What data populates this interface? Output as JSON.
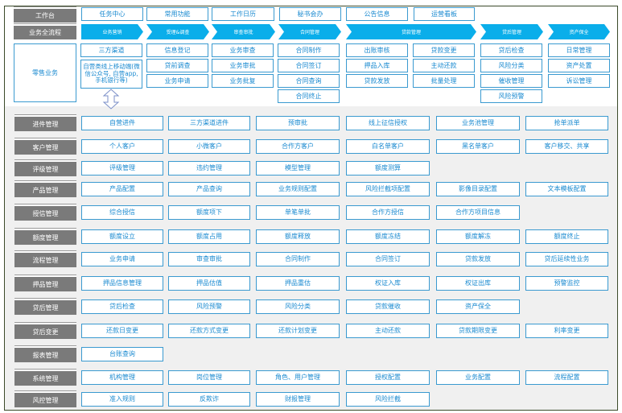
{
  "header": {
    "workbench_label": "工作台",
    "workbench_items": [
      "任务中心",
      "常用功能",
      "工作日历",
      "秘书会办",
      "公告信息",
      "运营看板"
    ],
    "process_label": "业务全流程",
    "process_stages": [
      "业务营销",
      "受理&调查",
      "审查审批",
      "合同管理",
      "贷款管理",
      "贷后管理",
      "资产保全"
    ],
    "retail_label": "零售业务",
    "retail_columns": [
      [
        "三方渠道",
        "自营类线上移动端(微信公众号, 自营app, 手机银行等)"
      ],
      [
        "信息登记",
        "贷前调查",
        "业务申请"
      ],
      [
        "业务审查",
        "业务审批",
        "业务批复"
      ],
      [
        "合同制作",
        "合同签订",
        "合同查询",
        "合同终止"
      ],
      [
        "出账审核",
        "押品入库",
        "贷款发放"
      ],
      [
        "贷款变更",
        "主动还款",
        "批量处理"
      ],
      [
        "贷后检查",
        "风险分类",
        "催收管理",
        "风险预警"
      ],
      [
        "日常管理",
        "资产处置",
        "诉讼管理"
      ]
    ]
  },
  "modules": [
    {
      "label": "进件管理",
      "items": [
        "自营进件",
        "三方渠道进件",
        "预审批",
        "线上征信授权",
        "业务池管理",
        "抢单派单"
      ]
    },
    {
      "label": "客户管理",
      "items": [
        "个人客户",
        "小微客户",
        "合作方客户",
        "白名单客户",
        "黑名单客户",
        "客户移交、共享"
      ]
    },
    {
      "label": "评级管理",
      "items": [
        "评级管理",
        "违约管理",
        "模型管理",
        "额度测算"
      ]
    },
    {
      "label": "产品管理",
      "items": [
        "产品配置",
        "产品查询",
        "业务规则配置",
        "风险拦截项配置",
        "影像目录配置",
        "文本模板配置"
      ]
    },
    {
      "label": "授信管理",
      "items": [
        "综合授信",
        "额度项下",
        "单笔单批",
        "合作方授信",
        "合作方项目信息"
      ]
    },
    {
      "label": "额度管理",
      "items": [
        "额度设立",
        "额度占用",
        "额度释放",
        "额度冻结",
        "额度解冻",
        "额度终止"
      ]
    },
    {
      "label": "流程管理",
      "items": [
        "业务申请",
        "审查审批",
        "合同制作",
        "合同签订",
        "贷款发放",
        "贷后延续性业务"
      ]
    },
    {
      "label": "押品管理",
      "items": [
        "押品信息管理",
        "押品估值",
        "押品重估",
        "权证入库",
        "权证出库",
        "预警监控"
      ]
    },
    {
      "label": "贷后管理",
      "items": [
        "贷后检查",
        "风险预警",
        "风险分类",
        "贷款催收",
        "资产保全"
      ]
    },
    {
      "label": "贷后变更",
      "items": [
        "还款日变更",
        "还款方式变更",
        "还款计划变更",
        "主动还款",
        "贷款期限变更",
        "利率变更"
      ]
    },
    {
      "label": "报表管理",
      "items": [
        "台账查询"
      ]
    },
    {
      "label": "系统管理",
      "items": [
        "机构管理",
        "岗位管理",
        "角色、用户管理",
        "授权配置",
        "业务配置",
        "流程配置"
      ]
    },
    {
      "label": "风控管理",
      "items": [
        "准入规则",
        "反欺诈",
        "财报管理",
        "风险拦截"
      ]
    }
  ],
  "colors": {
    "label_bg": "#7a7a7a",
    "cell_border": "#3a9ad0",
    "cell_text": "#1a8ad0",
    "chevron": "#0aaeea",
    "lower_bg": "#f0f0f0"
  }
}
